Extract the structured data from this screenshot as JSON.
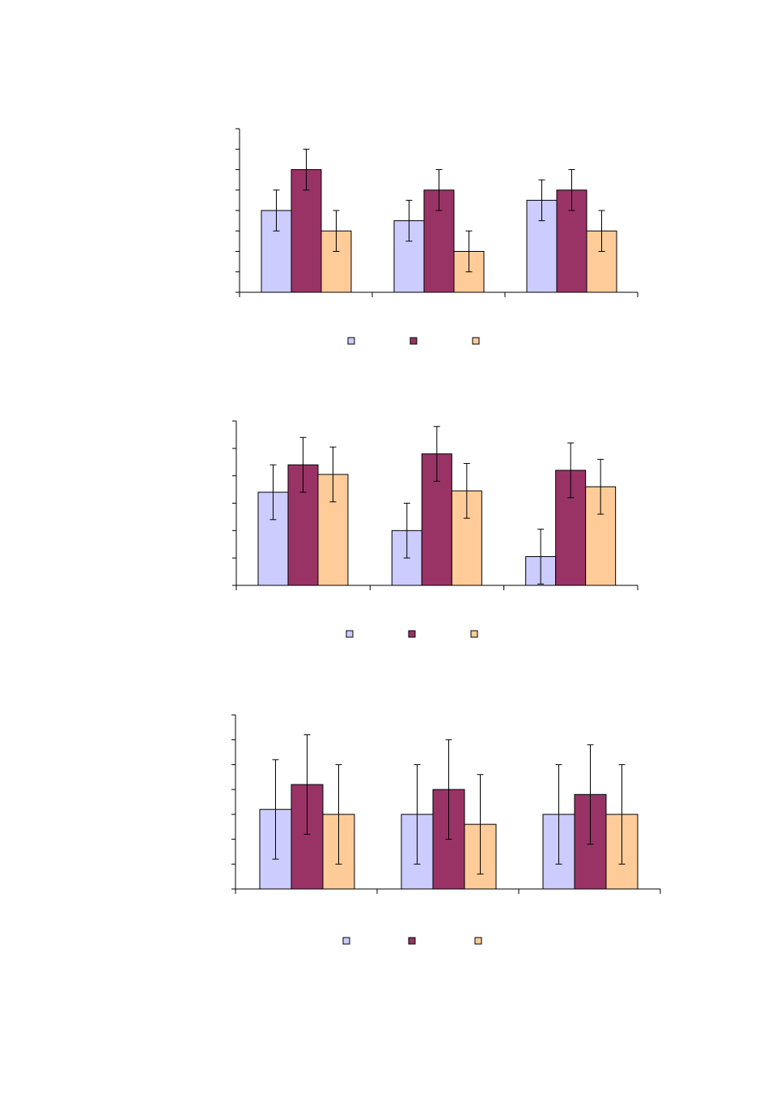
{
  "colors": {
    "series_a": "#ccccff",
    "series_b": "#993366",
    "series_c": "#ffcc99",
    "axis": "#000000"
  },
  "chart_data": [
    {
      "type": "bar",
      "categories": [
        "",
        "",
        ""
      ],
      "series": [
        {
          "values": [
            4.0,
            3.5,
            4.5
          ],
          "errors": [
            1.0,
            1.0,
            1.0
          ]
        },
        {
          "values": [
            6.0,
            5.0,
            5.0
          ],
          "errors": [
            1.0,
            1.0,
            1.0
          ]
        },
        {
          "values": [
            3.0,
            2.0,
            3.0
          ],
          "errors": [
            1.0,
            1.0,
            1.0
          ]
        }
      ],
      "ylim": [
        0,
        8
      ],
      "yticks": 8,
      "grid": false,
      "legend": "bottom-center"
    },
    {
      "type": "bar",
      "categories": [
        "",
        "",
        ""
      ],
      "series": [
        {
          "values": [
            3.4,
            2.0,
            1.05
          ],
          "errors": [
            1.0,
            1.0,
            1.0
          ]
        },
        {
          "values": [
            4.4,
            4.8,
            4.2
          ],
          "errors": [
            1.0,
            1.0,
            1.0
          ]
        },
        {
          "values": [
            4.05,
            3.45,
            3.6
          ],
          "errors": [
            1.0,
            1.0,
            1.0
          ]
        }
      ],
      "ylim": [
        0,
        6
      ],
      "yticks": 6,
      "grid": false,
      "legend": "bottom-center"
    },
    {
      "type": "bar",
      "categories": [
        "",
        "",
        ""
      ],
      "series": [
        {
          "values": [
            3.2,
            3.0,
            3.0
          ],
          "errors": [
            2.0,
            2.0,
            2.0
          ]
        },
        {
          "values": [
            4.2,
            4.0,
            3.8
          ],
          "errors": [
            2.0,
            2.0,
            2.0
          ]
        },
        {
          "values": [
            3.0,
            2.6,
            3.0
          ],
          "errors": [
            2.0,
            2.0,
            2.0
          ]
        }
      ],
      "ylim": [
        0,
        7
      ],
      "yticks": 7,
      "grid": false,
      "legend": "bottom-center"
    }
  ]
}
